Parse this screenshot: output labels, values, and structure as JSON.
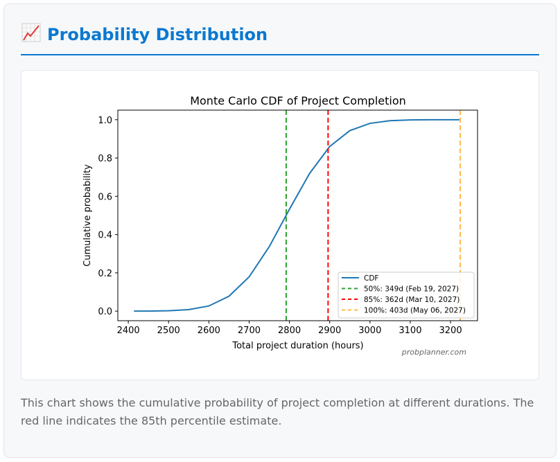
{
  "header": {
    "icon": "chart-increasing-icon",
    "title": "Probability Distribution"
  },
  "caption": "This chart shows the cumulative probability of project completion at different durations. The red line indicates the 85th percentile estimate.",
  "watermark": "probplanner.com",
  "chart_data": {
    "type": "line",
    "title": "Monte Carlo CDF of Project Completion",
    "xlabel": "Total project duration (hours)",
    "ylabel": "Cumulative probability",
    "xlim": [
      2374,
      3267
    ],
    "ylim": [
      -0.05,
      1.05
    ],
    "xticks": [
      2400,
      2500,
      2600,
      2700,
      2800,
      2900,
      3000,
      3100,
      3200
    ],
    "yticks": [
      "0.0",
      "0.2",
      "0.4",
      "0.6",
      "0.8",
      "1.0"
    ],
    "grid": false,
    "legend_position": "lower-right",
    "series": [
      {
        "name": "CDF",
        "color": "#1f77b4",
        "x": [
          2414,
          2450,
          2500,
          2550,
          2600,
          2650,
          2700,
          2750,
          2800,
          2850,
          2900,
          2950,
          3000,
          3050,
          3100,
          3150,
          3222
        ],
        "y": [
          0.0001,
          0.0003,
          0.002,
          0.008,
          0.027,
          0.078,
          0.179,
          0.337,
          0.532,
          0.719,
          0.86,
          0.943,
          0.981,
          0.995,
          0.999,
          1.0,
          1.0
        ]
      }
    ],
    "reference_lines": [
      {
        "name": "50%: 349d (Feb 19, 2027)",
        "x": 2792,
        "color": "#2ca02c"
      },
      {
        "name": "85%: 362d (Mar 10, 2027)",
        "x": 2896,
        "color": "#ff0000"
      },
      {
        "name": "100%: 403d (May 06, 2027)",
        "x": 3224,
        "color": "#ffb74d"
      }
    ]
  }
}
